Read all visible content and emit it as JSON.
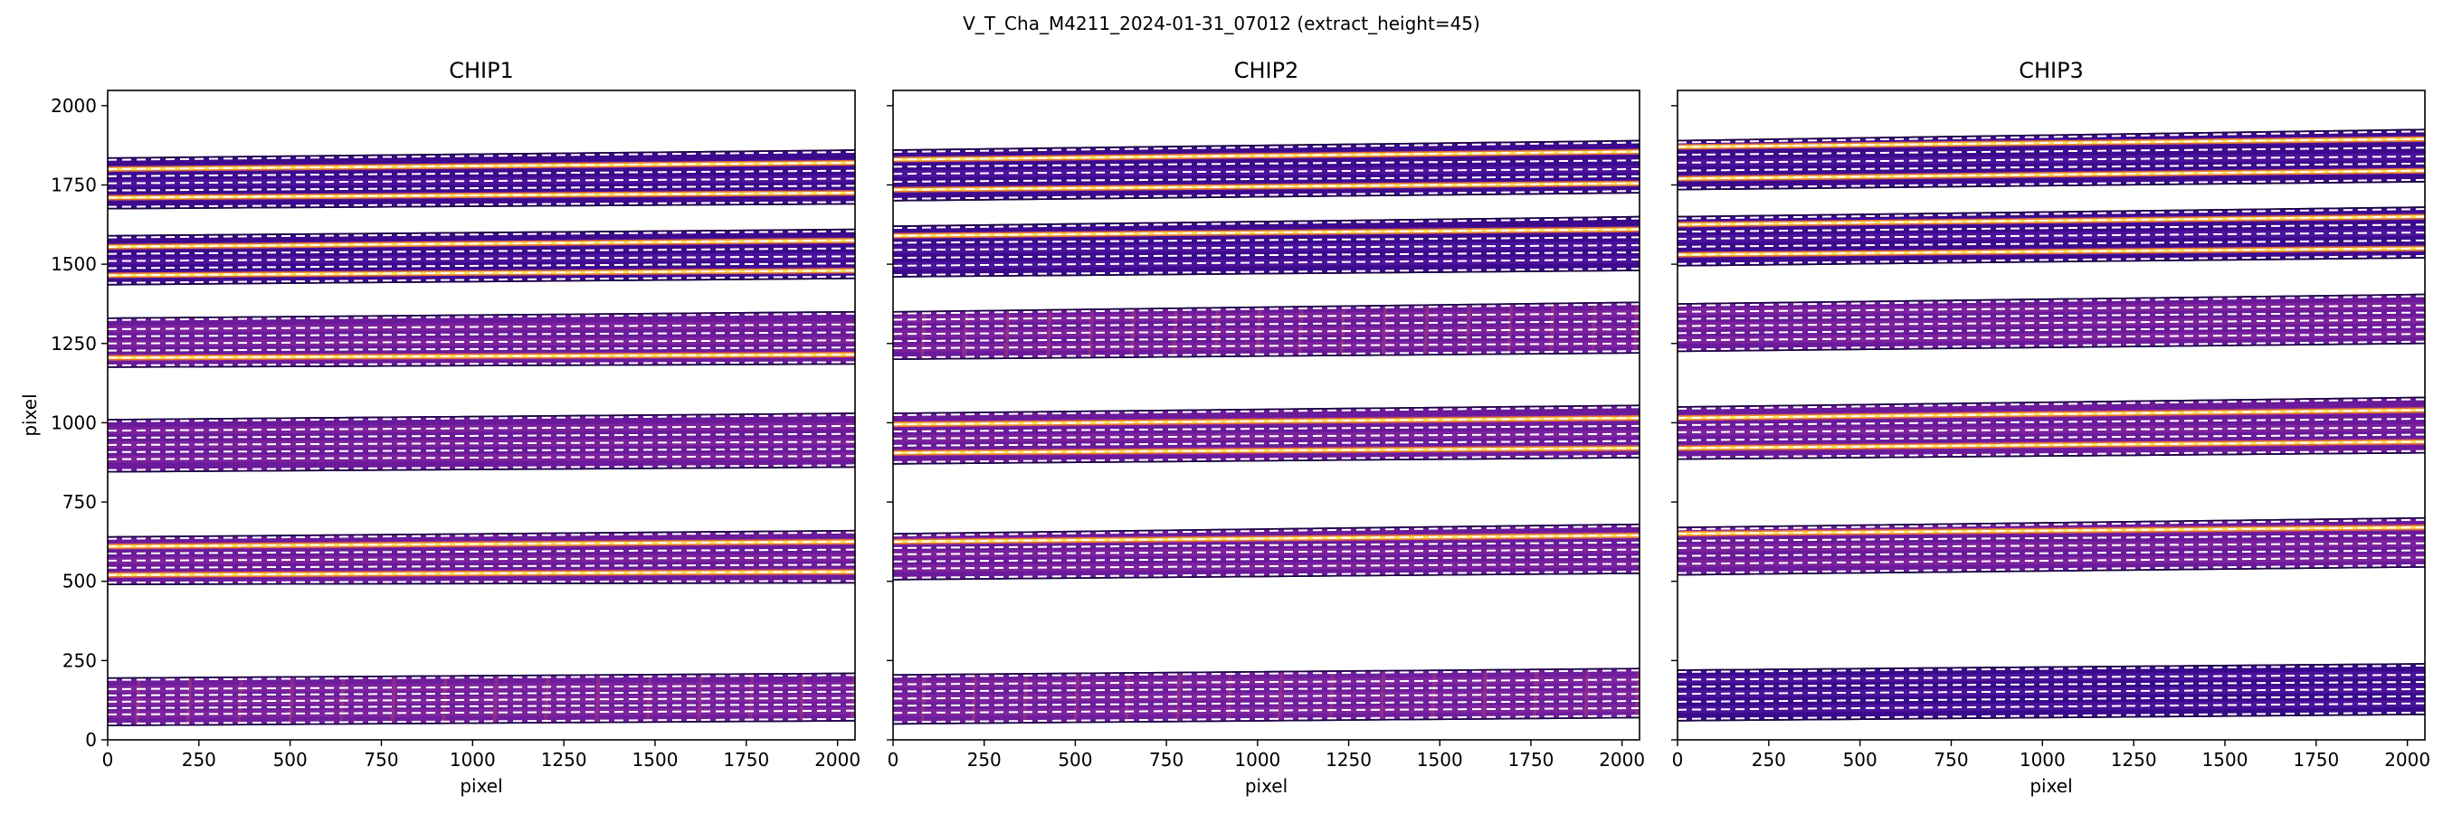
{
  "figure": {
    "suptitle": "V_T_Cha_M4211_2024-01-31_07012  (extract_height=45)"
  },
  "chart_data": [
    {
      "type": "heatmap",
      "title": "CHIP1",
      "xlabel": "pixel",
      "ylabel": "pixel",
      "xlim": [
        0,
        2048
      ],
      "ylim": [
        0,
        2048
      ],
      "xticks": [
        0,
        250,
        500,
        750,
        1000,
        1250,
        1500,
        1750,
        2000
      ],
      "yticks": [
        0,
        250,
        500,
        750,
        1000,
        1250,
        1500,
        1750,
        2000
      ],
      "orders": [
        {
          "lower": [
            45,
            60
          ],
          "upper": [
            195,
            210
          ],
          "traces": [
            [
              80,
              92
            ],
            [
              120,
              132
            ],
            [
              160,
              172
            ]
          ],
          "style": "magenta-dense"
        },
        {
          "lower": [
            490,
            495
          ],
          "upper": [
            640,
            660
          ],
          "traces": [
            [
              520,
              530
            ],
            [
              565,
              575
            ],
            [
              610,
              625
            ]
          ],
          "style": "magenta",
          "bright": [
            [
              520,
              530
            ],
            [
              610,
              625
            ]
          ]
        },
        {
          "lower": [
            845,
            860
          ],
          "upper": [
            1010,
            1030
          ],
          "traces": [
            [
              885,
              895
            ],
            [
              930,
              940
            ],
            [
              975,
              990
            ]
          ],
          "style": "magenta"
        },
        {
          "lower": [
            1175,
            1185
          ],
          "upper": [
            1330,
            1350
          ],
          "traces": [
            [
              1205,
              1215
            ],
            [
              1250,
              1260
            ],
            [
              1295,
              1310
            ]
          ],
          "style": "magenta",
          "bright": [
            [
              1205,
              1215
            ]
          ]
        },
        {
          "lower": [
            1435,
            1455
          ],
          "upper": [
            1590,
            1610
          ],
          "traces": [
            [
              1465,
              1480
            ],
            [
              1510,
              1525
            ],
            [
              1555,
              1575
            ]
          ],
          "style": "indigo",
          "bright": [
            [
              1465,
              1480
            ],
            [
              1555,
              1575
            ]
          ]
        },
        {
          "lower": [
            1675,
            1690
          ],
          "upper": [
            1835,
            1860
          ],
          "traces": [
            [
              1710,
              1725
            ],
            [
              1755,
              1770
            ],
            [
              1800,
              1820
            ]
          ],
          "style": "indigo",
          "bright": [
            [
              1710,
              1725
            ],
            [
              1800,
              1820
            ]
          ]
        }
      ]
    },
    {
      "type": "heatmap",
      "title": "CHIP2",
      "xlabel": "pixel",
      "ylabel": "",
      "xlim": [
        0,
        2048
      ],
      "ylim": [
        0,
        2048
      ],
      "xticks": [
        0,
        250,
        500,
        750,
        1000,
        1250,
        1500,
        1750,
        2000
      ],
      "yticks": [
        0,
        250,
        500,
        750,
        1000,
        1250,
        1500,
        1750,
        2000
      ],
      "orders": [
        {
          "lower": [
            50,
            70
          ],
          "upper": [
            205,
            225
          ],
          "traces": [
            [
              85,
              100
            ],
            [
              130,
              145
            ],
            [
              175,
              190
            ]
          ],
          "style": "magenta-dense"
        },
        {
          "lower": [
            505,
            525
          ],
          "upper": [
            650,
            680
          ],
          "traces": [
            [
              540,
              555
            ],
            [
              585,
              600
            ],
            [
              625,
              645
            ]
          ],
          "style": "magenta",
          "bright": [
            [
              625,
              645
            ]
          ]
        },
        {
          "lower": [
            870,
            890
          ],
          "upper": [
            1030,
            1055
          ],
          "traces": [
            [
              905,
              920
            ],
            [
              950,
              965
            ],
            [
              995,
              1015
            ]
          ],
          "style": "magenta",
          "bright": [
            [
              905,
              920
            ],
            [
              995,
              1015
            ]
          ]
        },
        {
          "lower": [
            1200,
            1220
          ],
          "upper": [
            1350,
            1380
          ],
          "traces": [
            [
              1235,
              1250
            ],
            [
              1280,
              1295
            ],
            [
              1325,
              1345
            ]
          ],
          "style": "magenta-lines"
        },
        {
          "lower": [
            1460,
            1480
          ],
          "upper": [
            1620,
            1650
          ],
          "traces": [
            [
              1495,
              1515
            ],
            [
              1545,
              1560
            ],
            [
              1590,
              1610
            ]
          ],
          "style": "indigo",
          "bright": [
            [
              1590,
              1610
            ]
          ]
        },
        {
          "lower": [
            1700,
            1725
          ],
          "upper": [
            1860,
            1890
          ],
          "traces": [
            [
              1735,
              1755
            ],
            [
              1785,
              1800
            ],
            [
              1830,
              1855
            ]
          ],
          "style": "indigo",
          "bright": [
            [
              1735,
              1755
            ],
            [
              1830,
              1855
            ]
          ]
        }
      ]
    },
    {
      "type": "heatmap",
      "title": "CHIP3",
      "xlabel": "pixel",
      "ylabel": "",
      "xlim": [
        0,
        2048
      ],
      "ylim": [
        0,
        2048
      ],
      "xticks": [
        0,
        250,
        500,
        750,
        1000,
        1250,
        1500,
        1750,
        2000
      ],
      "yticks": [
        0,
        250,
        500,
        750,
        1000,
        1250,
        1500,
        1750,
        2000
      ],
      "orders": [
        {
          "lower": [
            60,
            80
          ],
          "upper": [
            220,
            240
          ],
          "traces": [
            [
              95,
              115
            ],
            [
              145,
              160
            ],
            [
              190,
              205
            ]
          ],
          "style": "indigo-flat"
        },
        {
          "lower": [
            520,
            545
          ],
          "upper": [
            670,
            700
          ],
          "traces": [
            [
              555,
              575
            ],
            [
              605,
              620
            ],
            [
              650,
              670
            ]
          ],
          "style": "magenta",
          "bright": [
            [
              650,
              670
            ]
          ]
        },
        {
          "lower": [
            885,
            905
          ],
          "upper": [
            1050,
            1080
          ],
          "traces": [
            [
              920,
              940
            ],
            [
              970,
              985
            ],
            [
              1015,
              1040
            ]
          ],
          "style": "magenta",
          "bright": [
            [
              920,
              940
            ],
            [
              1015,
              1040
            ]
          ]
        },
        {
          "lower": [
            1225,
            1250
          ],
          "upper": [
            1375,
            1405
          ],
          "traces": [
            [
              1260,
              1280
            ],
            [
              1305,
              1325
            ],
            [
              1350,
              1370
            ]
          ],
          "style": "magenta"
        },
        {
          "lower": [
            1495,
            1520
          ],
          "upper": [
            1650,
            1680
          ],
          "traces": [
            [
              1530,
              1550
            ],
            [
              1580,
              1600
            ],
            [
              1625,
              1650
            ]
          ],
          "style": "indigo",
          "bright": [
            [
              1530,
              1550
            ],
            [
              1625,
              1650
            ]
          ]
        },
        {
          "lower": [
            1735,
            1760
          ],
          "upper": [
            1890,
            1925
          ],
          "traces": [
            [
              1770,
              1795
            ],
            [
              1820,
              1840
            ],
            [
              1870,
              1895
            ]
          ],
          "style": "indigo",
          "bright": [
            [
              1770,
              1795
            ],
            [
              1870,
              1895
            ]
          ]
        }
      ]
    }
  ]
}
